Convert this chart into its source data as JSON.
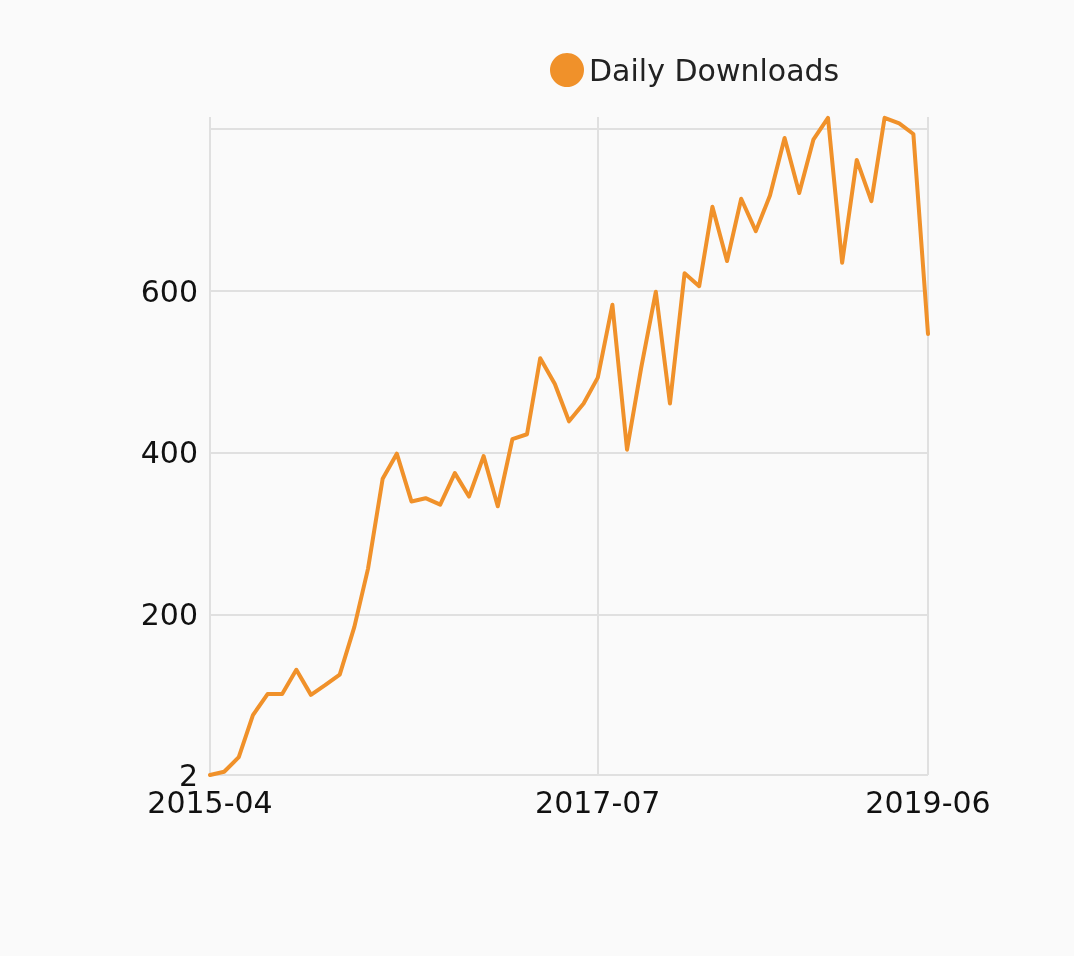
{
  "chart_data": {
    "type": "line",
    "x": [
      "2015-04",
      "2015-05",
      "2015-06",
      "2015-07",
      "2015-08",
      "2015-09",
      "2015-10",
      "2015-11",
      "2015-12",
      "2016-01",
      "2016-02",
      "2016-03",
      "2016-04",
      "2016-05",
      "2016-06",
      "2016-07",
      "2016-08",
      "2016-09",
      "2016-10",
      "2016-11",
      "2016-12",
      "2017-01",
      "2017-02",
      "2017-03",
      "2017-04",
      "2017-05",
      "2017-06",
      "2017-07",
      "2017-08",
      "2017-09",
      "2017-10",
      "2017-11",
      "2017-12",
      "2018-01",
      "2018-02",
      "2018-03",
      "2018-04",
      "2018-05",
      "2018-06",
      "2018-07",
      "2018-08",
      "2018-09",
      "2018-10",
      "2018-11",
      "2018-12",
      "2019-01",
      "2019-02",
      "2019-03",
      "2019-04",
      "2019-05",
      "2019-06"
    ],
    "series": [
      {
        "name": "Daily Downloads",
        "color": "#f0912a",
        "values": [
          2,
          6,
          24,
          76,
          102,
          102,
          132,
          101,
          113,
          126,
          185,
          257,
          368,
          399,
          340,
          344,
          336,
          375,
          346,
          396,
          334,
          417,
          423,
          517,
          485,
          439,
          461,
          493,
          583,
          404,
          505,
          599,
          461,
          622,
          606,
          704,
          637,
          714,
          674,
          718,
          789,
          721,
          787,
          814,
          635,
          762,
          711,
          814,
          807,
          794,
          547
        ]
      }
    ],
    "xlim": [
      "2015-04",
      "2019-06"
    ],
    "xticks": [
      "2015-04",
      "2017-07",
      "2019-06"
    ],
    "ylim": [
      2,
      815
    ],
    "yticks": [
      2,
      200,
      400,
      600,
      {
        "value": 800,
        "label": null
      }
    ],
    "grid": true,
    "legend": "top",
    "marker": "none",
    "line_style": "solid"
  }
}
